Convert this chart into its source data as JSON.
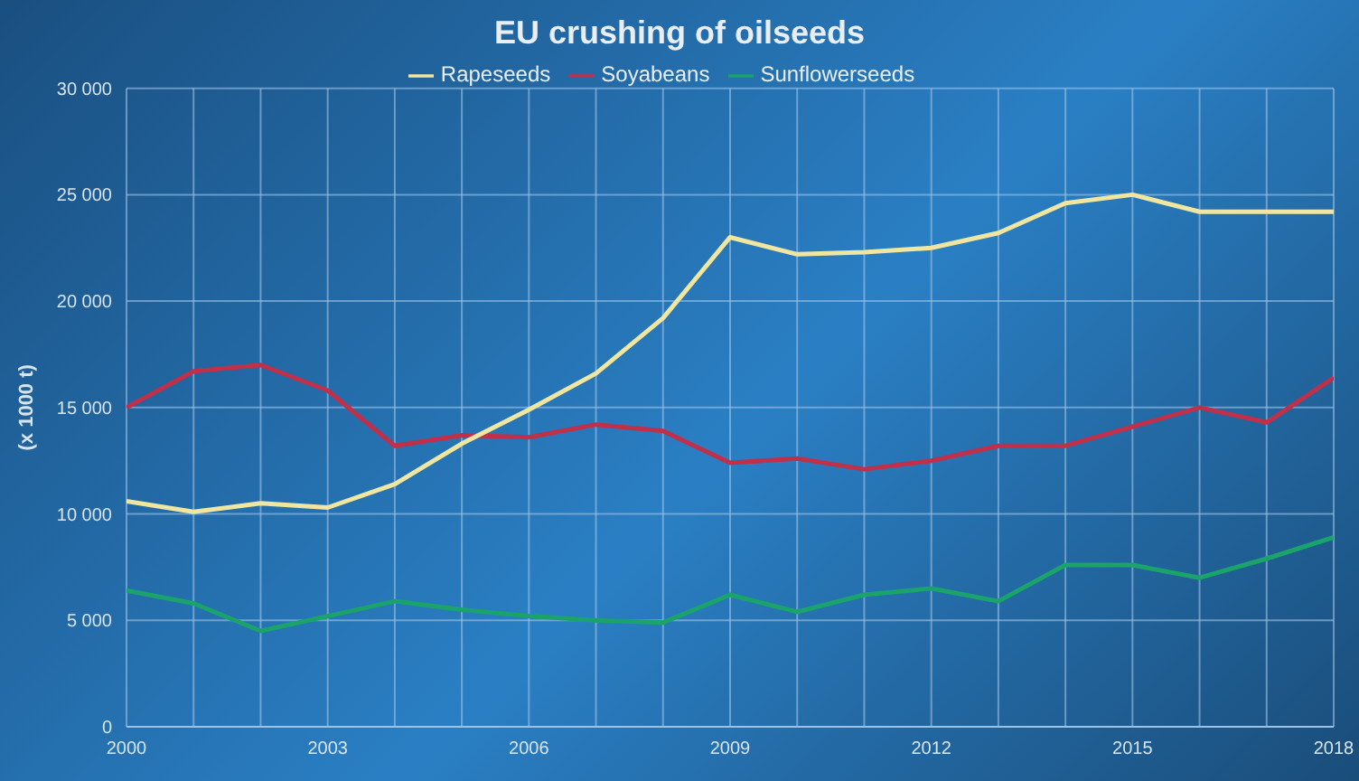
{
  "chart_data": {
    "type": "line",
    "title": "EU crushing of oilseeds",
    "ylabel": "(x 1000 t)",
    "x": [
      2000,
      2001,
      2002,
      2003,
      2004,
      2005,
      2006,
      2007,
      2008,
      2009,
      2010,
      2011,
      2012,
      2013,
      2014,
      2015,
      2016,
      2017,
      2018
    ],
    "series": [
      {
        "name": "Soyabeans",
        "color": "#c0304a",
        "values": [
          15000,
          16700,
          17000,
          15800,
          13200,
          13700,
          13600,
          14200,
          13900,
          12400,
          12600,
          12100,
          12500,
          13200,
          13200,
          14100,
          15000,
          14300,
          16400
        ]
      },
      {
        "name": "Rapeseeds",
        "color": "#f0e6a0",
        "values": [
          10600,
          10100,
          10500,
          10300,
          11400,
          13300,
          14900,
          16600,
          19200,
          23000,
          22200,
          22300,
          22500,
          23200,
          24600,
          25000,
          24200,
          24200,
          24200
        ]
      },
      {
        "name": "Sunflowerseeds",
        "color": "#1aa36a",
        "values": [
          6400,
          5800,
          4500,
          5200,
          5900,
          5500,
          5200,
          5000,
          4900,
          6200,
          5400,
          6200,
          6500,
          5900,
          7600,
          7600,
          7000,
          7900,
          8900
        ]
      }
    ],
    "xlim": [
      2000,
      2018
    ],
    "xticks": [
      2000,
      {
        "value": 2001,
        "label": null
      },
      {
        "value": 2002,
        "label": null
      },
      2003,
      {
        "value": 2004,
        "label": null
      },
      {
        "value": 2005,
        "label": null
      },
      2006,
      {
        "value": 2007,
        "label": null
      },
      {
        "value": 2008,
        "label": null
      },
      2009,
      {
        "value": 2010,
        "label": null
      },
      {
        "value": 2011,
        "label": null
      },
      2012,
      {
        "value": 2013,
        "label": null
      },
      {
        "value": 2014,
        "label": null
      },
      2015,
      {
        "value": 2016,
        "label": null
      },
      {
        "value": 2017,
        "label": null
      },
      2018
    ],
    "ylim": [
      0,
      30000
    ],
    "yticks": [
      {
        "value": 0,
        "label": "0"
      },
      {
        "value": 5000,
        "label": "5 000"
      },
      {
        "value": 10000,
        "label": "10 000"
      },
      {
        "value": 15000,
        "label": "15 000"
      },
      {
        "value": 20000,
        "label": "20 000"
      },
      {
        "value": 25000,
        "label": "25 000"
      },
      {
        "value": 30000,
        "label": "30 000"
      }
    ],
    "grid": true,
    "legend": "top",
    "marker": "none",
    "line_style": "solid"
  }
}
